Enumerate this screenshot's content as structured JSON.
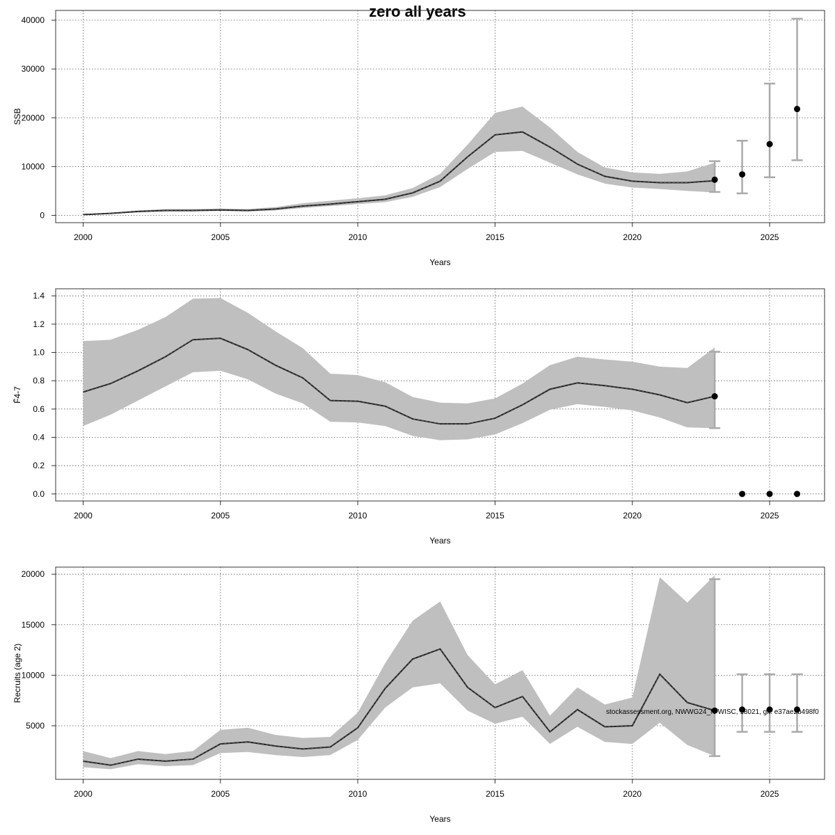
{
  "title": "zero all years",
  "footnote": "stockassessment.org, NWWG24_N-WISC, 18021, git: e37ae2b498f0",
  "chart_data": [
    {
      "type": "line",
      "ylabel": "SSB",
      "xlabel": "Years",
      "xlim": [
        1999,
        2027
      ],
      "ylim": [
        -1500,
        42000
      ],
      "xticks": [
        "2000",
        "2005",
        "2010",
        "2015",
        "2020",
        "2025"
      ],
      "yticks": [
        "0",
        "10000",
        "20000",
        "30000",
        "40000"
      ],
      "grid": true,
      "x": [
        2000,
        2001,
        2002,
        2003,
        2004,
        2005,
        2006,
        2007,
        2008,
        2009,
        2010,
        2011,
        2012,
        2013,
        2014,
        2015,
        2016,
        2017,
        2018,
        2019,
        2020,
        2021,
        2022,
        2023
      ],
      "y": [
        150,
        400,
        800,
        1000,
        1000,
        1100,
        1000,
        1300,
        1900,
        2300,
        2800,
        3300,
        4600,
        7000,
        12000,
        16500,
        17100,
        14000,
        10500,
        8000,
        7000,
        6700,
        6700,
        7100
      ],
      "lower": [
        100,
        300,
        600,
        800,
        800,
        900,
        800,
        1000,
        1500,
        1900,
        2300,
        2700,
        3800,
        5800,
        9500,
        13000,
        13200,
        10800,
        8400,
        6500,
        5700,
        5400,
        5000,
        4700
      ],
      "upper": [
        200,
        500,
        1000,
        1300,
        1300,
        1400,
        1300,
        1700,
        2500,
        3000,
        3500,
        4100,
        5600,
        8500,
        14500,
        21000,
        22300,
        18000,
        13000,
        9800,
        8800,
        8500,
        9000,
        10800
      ],
      "forecast": {
        "x": [
          2023,
          2024,
          2025,
          2026
        ],
        "y": [
          7300,
          8400,
          14600,
          21800
        ],
        "lower": [
          4800,
          4500,
          7800,
          11300
        ],
        "upper": [
          11100,
          15300,
          27000,
          40300
        ]
      }
    },
    {
      "type": "line",
      "ylabel": "F̄4-7",
      "xlabel": "Years",
      "xlim": [
        1999,
        2027
      ],
      "ylim": [
        -0.05,
        1.45
      ],
      "xticks": [
        "2000",
        "2005",
        "2010",
        "2015",
        "2020",
        "2025"
      ],
      "yticks": [
        "0.0",
        "0.2",
        "0.4",
        "0.6",
        "0.8",
        "1.0",
        "1.2",
        "1.4"
      ],
      "grid": true,
      "x": [
        2000,
        2001,
        2002,
        2003,
        2004,
        2005,
        2006,
        2007,
        2008,
        2009,
        2010,
        2011,
        2012,
        2013,
        2014,
        2015,
        2016,
        2017,
        2018,
        2019,
        2020,
        2021,
        2022,
        2023
      ],
      "y": [
        0.72,
        0.78,
        0.87,
        0.97,
        1.09,
        1.1,
        1.02,
        0.91,
        0.82,
        0.66,
        0.655,
        0.62,
        0.53,
        0.495,
        0.495,
        0.535,
        0.63,
        0.74,
        0.785,
        0.765,
        0.74,
        0.7,
        0.645,
        0.69
      ],
      "lower": [
        0.48,
        0.56,
        0.66,
        0.76,
        0.86,
        0.87,
        0.81,
        0.71,
        0.64,
        0.51,
        0.505,
        0.48,
        0.41,
        0.38,
        0.385,
        0.42,
        0.5,
        0.595,
        0.635,
        0.615,
        0.59,
        0.54,
        0.47,
        0.465
      ],
      "upper": [
        1.08,
        1.09,
        1.16,
        1.25,
        1.38,
        1.385,
        1.28,
        1.15,
        1.03,
        0.85,
        0.84,
        0.79,
        0.685,
        0.645,
        0.64,
        0.675,
        0.78,
        0.91,
        0.97,
        0.95,
        0.935,
        0.9,
        0.89,
        1.035
      ],
      "forecast": {
        "x": [
          2023,
          2024,
          2025,
          2026
        ],
        "y": [
          0.69,
          0.0,
          0.0,
          0.0
        ],
        "lower": [
          0.465,
          0.0,
          0.0,
          0.0
        ],
        "upper": [
          1.005,
          0.0,
          0.0,
          0.0
        ]
      }
    },
    {
      "type": "line",
      "ylabel": "Recruits (age 2)",
      "xlabel": "Years",
      "xlim": [
        1999,
        2027
      ],
      "ylim": [
        -300,
        20700
      ],
      "xticks": [
        "2000",
        "2005",
        "2010",
        "2015",
        "2020",
        "2025"
      ],
      "yticks": [
        "5000",
        "10000",
        "15000",
        "20000"
      ],
      "grid": true,
      "x": [
        2000,
        2001,
        2002,
        2003,
        2004,
        2005,
        2006,
        2007,
        2008,
        2009,
        2010,
        2011,
        2012,
        2013,
        2014,
        2015,
        2016,
        2017,
        2018,
        2019,
        2020,
        2021,
        2022,
        2023
      ],
      "y": [
        1500,
        1100,
        1700,
        1500,
        1700,
        3200,
        3400,
        3000,
        2700,
        2900,
        4800,
        8700,
        11600,
        12600,
        8800,
        6800,
        7900,
        4400,
        6600,
        4900,
        5000,
        10100,
        7300,
        6500
      ],
      "lower": [
        900,
        700,
        1200,
        1000,
        1100,
        2300,
        2400,
        2100,
        1900,
        2100,
        3600,
        6800,
        8800,
        9200,
        6500,
        5200,
        5900,
        3200,
        4900,
        3400,
        3200,
        5300,
        3100,
        2000
      ],
      "upper": [
        2500,
        1800,
        2500,
        2200,
        2500,
        4600,
        4800,
        4100,
        3800,
        3900,
        6300,
        11200,
        15400,
        17300,
        12000,
        9100,
        10500,
        6000,
        8800,
        7100,
        7800,
        19700,
        17200,
        19900
      ],
      "forecast": {
        "x": [
          2023,
          2024,
          2025,
          2026
        ],
        "y": [
          6500,
          6600,
          6600,
          6600
        ],
        "lower": [
          2000,
          4400,
          4400,
          4400
        ],
        "upper": [
          19500,
          10100,
          10100,
          10100
        ]
      }
    }
  ]
}
